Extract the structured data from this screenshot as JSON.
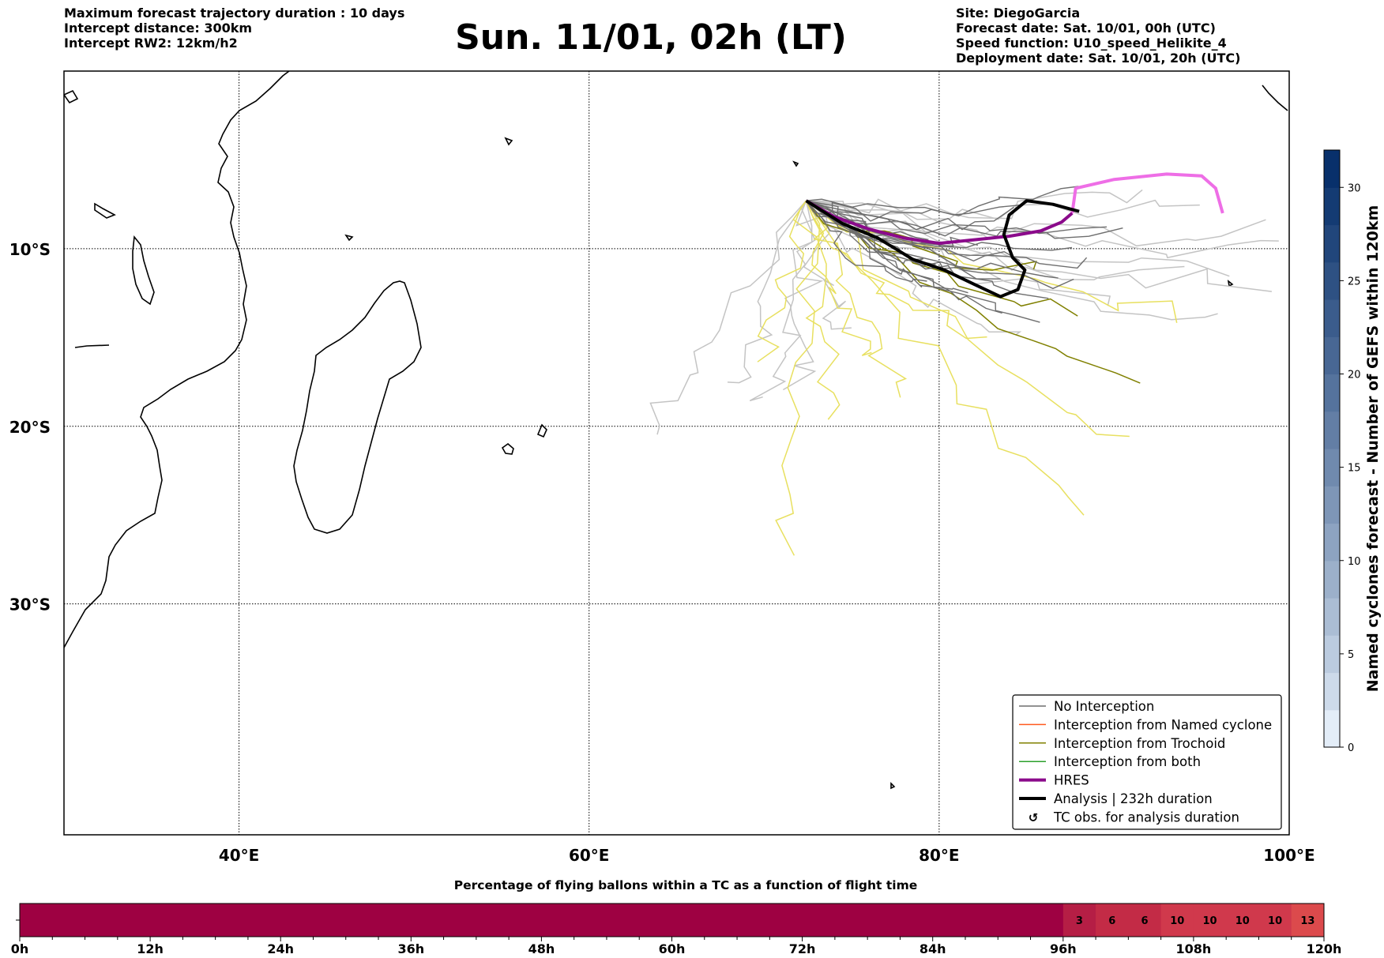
{
  "header": {
    "left": [
      "Maximum forecast trajectory duration : 10 days",
      "Intercept distance: 300km",
      "Intercept RW2: 12km/h2"
    ],
    "title": "Sun. 11/01, 02h (LT)",
    "right": [
      "Site: DiegoGarcia",
      "Forecast date: Sat. 10/01, 00h (UTC)",
      "Speed function: U10_speed_Helikite_4",
      "Deployment date: Sat. 10/01, 20h (UTC)"
    ]
  },
  "map": {
    "lon_range": [
      30,
      100
    ],
    "lat_range": [
      -43,
      0
    ],
    "lon_ticks": [
      {
        "value": 40,
        "label": "40°E"
      },
      {
        "value": 60,
        "label": "60°E"
      },
      {
        "value": 80,
        "label": "80°E"
      },
      {
        "value": 100,
        "label": "100°E"
      }
    ],
    "lat_ticks": [
      {
        "value": -10,
        "label": "10°S"
      },
      {
        "value": -20,
        "label": "20°S"
      },
      {
        "value": -30,
        "label": "30°S"
      }
    ],
    "gridlines": true,
    "colors": {
      "no_interception": "#6e6e6e",
      "ensemble_light": "#c4c4c4",
      "named_cyclone": "#ff5a1f",
      "trochoid": "#808000",
      "both": "#2ca02c",
      "hres": "#8b0a8b",
      "hres_extension": "#ee6ee6",
      "analysis": "#000000",
      "yellow_tracks": "#e8e060"
    },
    "launch_point": {
      "lon": 72.4,
      "lat": -7.3
    },
    "hres_track": [
      [
        72.4,
        -7.3
      ],
      [
        74,
        -8.2
      ],
      [
        76,
        -8.9
      ],
      [
        78,
        -9.4
      ],
      [
        80,
        -9.7
      ],
      [
        82,
        -9.5
      ],
      [
        84,
        -9.3
      ],
      [
        85.8,
        -9.0
      ],
      [
        87,
        -8.5
      ],
      [
        87.6,
        -8.0
      ]
    ],
    "hres_extension_track": [
      [
        87.6,
        -8.0
      ],
      [
        87.8,
        -6.6
      ],
      [
        90,
        -6.1
      ],
      [
        93,
        -5.8
      ],
      [
        95,
        -5.9
      ],
      [
        95.8,
        -6.6
      ],
      [
        96.2,
        -8.0
      ]
    ],
    "analysis_track": [
      [
        72.4,
        -7.3
      ],
      [
        74.5,
        -8.6
      ],
      [
        76.5,
        -9.4
      ],
      [
        78.5,
        -10.6
      ],
      [
        80.3,
        -11.2
      ],
      [
        82,
        -12.0
      ],
      [
        83.5,
        -12.7
      ],
      [
        84.5,
        -12.3
      ],
      [
        84.9,
        -11.2
      ],
      [
        84.2,
        -10.5
      ],
      [
        83.7,
        -9.2
      ],
      [
        84,
        -8.1
      ],
      [
        85,
        -7.3
      ],
      [
        86.5,
        -7.5
      ],
      [
        88,
        -7.9
      ]
    ],
    "legend": [
      {
        "label": "No Interception",
        "style": "thin",
        "color": "#6e6e6e"
      },
      {
        "label": "Interception from Named cyclone",
        "style": "thin",
        "color": "#ff5a1f"
      },
      {
        "label": "Interception from Trochoid",
        "style": "thin",
        "color": "#808000"
      },
      {
        "label": "Interception from both",
        "style": "thin",
        "color": "#2ca02c"
      },
      {
        "label": "HRES",
        "style": "thick",
        "color": "#8b0a8b"
      },
      {
        "label": "Analysis | 232h duration",
        "style": "thick",
        "color": "#000000"
      },
      {
        "label": "TC obs. for analysis duration",
        "style": "marker",
        "color": "#000000"
      }
    ],
    "legend_placement": "lower-right"
  },
  "colorbar": {
    "label": "Named cyclones forecast - Number of GEFS within 120km",
    "ticks": [
      "0",
      "5",
      "10",
      "15",
      "20",
      "25",
      "30"
    ],
    "range": [
      0,
      32
    ],
    "colors": [
      "#e3edf8",
      "#08306b"
    ]
  },
  "chart_data": {
    "type": "bar",
    "title": "Percentage of flying ballons within a TC as a function of flight time",
    "x_tick_labels": [
      "0h",
      "12h",
      "24h",
      "36h",
      "48h",
      "60h",
      "72h",
      "84h",
      "96h",
      "108h",
      "120h"
    ],
    "x_range_hours": [
      0,
      120
    ],
    "segment_hours": 3,
    "cells": [
      {
        "start": 96,
        "value": 3
      },
      {
        "start": 99,
        "value": 6
      },
      {
        "start": 102,
        "value": 6
      },
      {
        "start": 105,
        "value": 10
      },
      {
        "start": 108,
        "value": 10
      },
      {
        "start": 111,
        "value": 10
      },
      {
        "start": 114,
        "value": 10
      },
      {
        "start": 117,
        "value": 13
      }
    ],
    "colors": {
      "zero": "#9e0142",
      "3": "#b51e45",
      "6": "#c32b46",
      "10": "#d0394c",
      "13": "#dc4a4c"
    }
  }
}
